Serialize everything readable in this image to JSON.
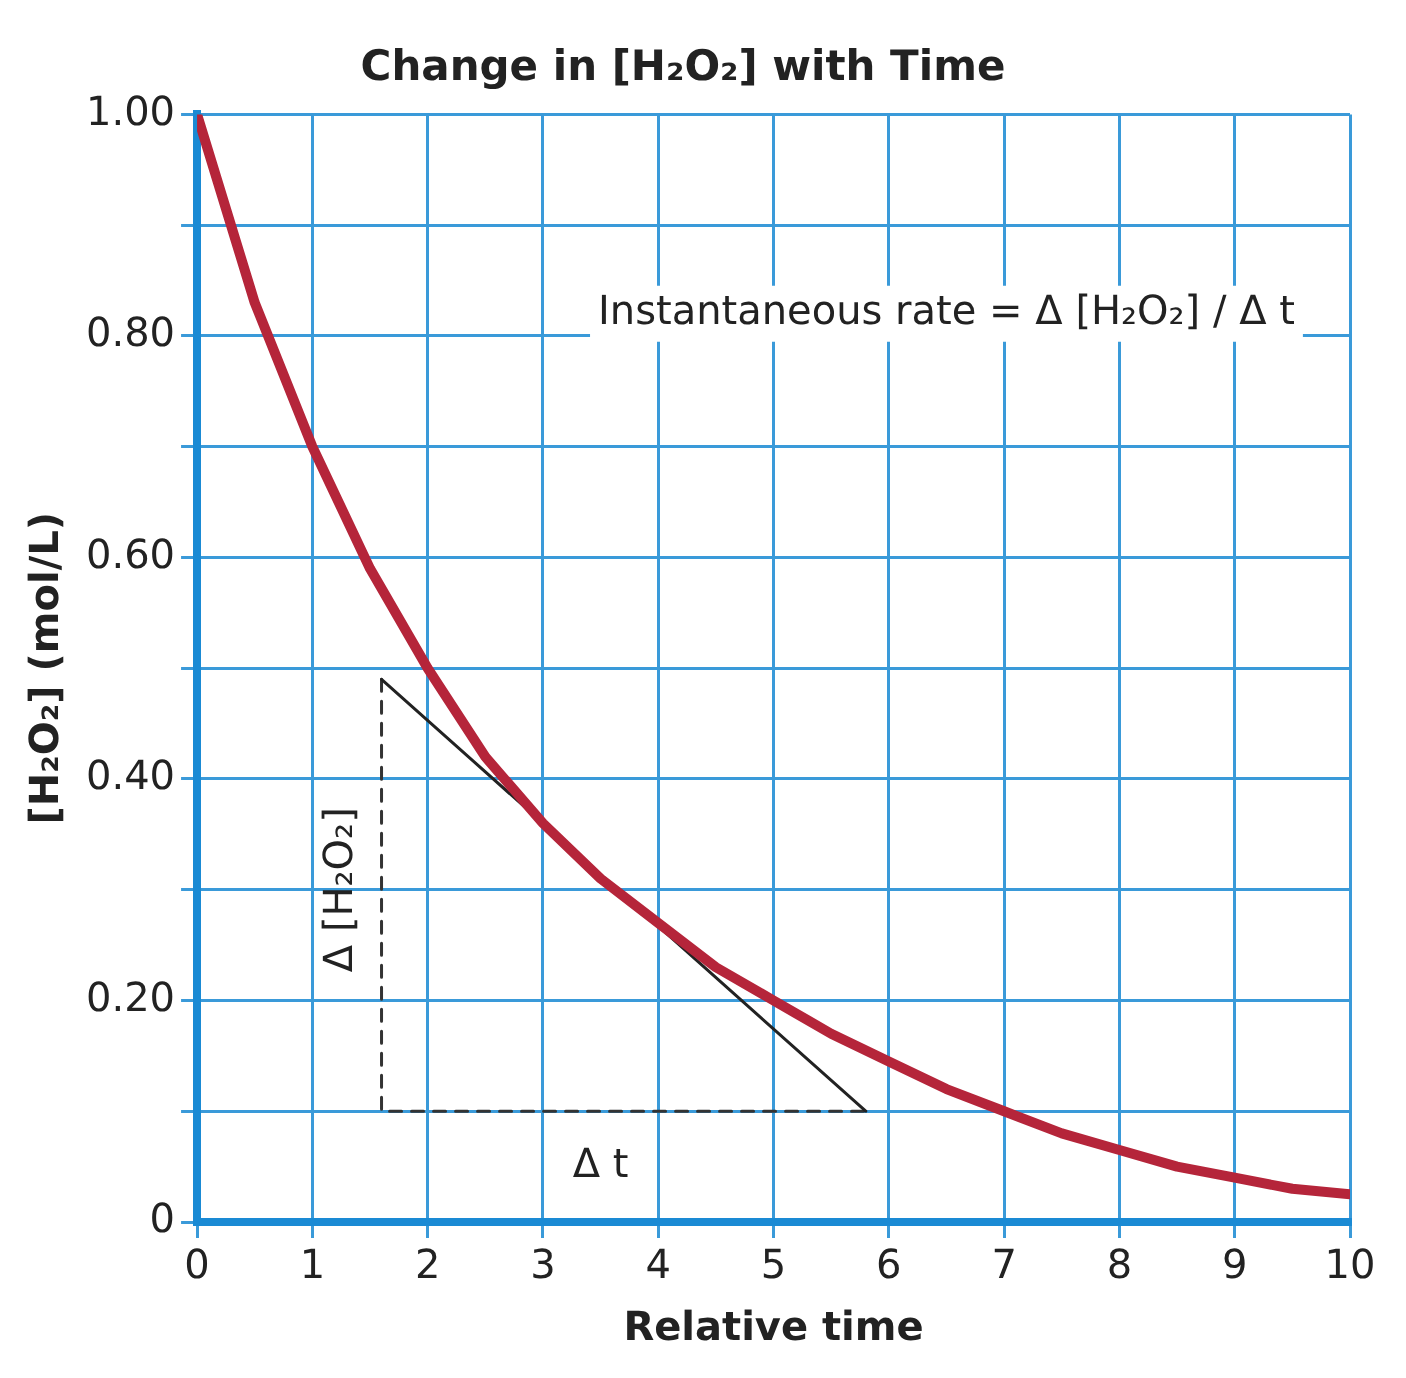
{
  "chart_data": {
    "type": "line",
    "title": "Change in [H₂O₂] with Time",
    "xlabel": "Relative time",
    "ylabel": "[H₂O₂] (mol/L)",
    "annotations": [
      "Instantaneous rate = Δ [H₂O₂] / Δ t",
      "Δ t",
      "Δ [H₂O₂]"
    ],
    "series": [
      {
        "color": "#b5253a",
        "x": [
          0,
          0.5,
          1,
          1.5,
          2,
          2.5,
          3,
          3.5,
          4,
          4.5,
          5,
          5.5,
          6,
          6.5,
          7,
          7.5,
          8,
          8.5,
          9,
          9.5,
          10
        ],
        "values": [
          1.0,
          0.83,
          0.7,
          0.59,
          0.5,
          0.42,
          0.36,
          0.31,
          0.27,
          0.23,
          0.2,
          0.17,
          0.145,
          0.12,
          0.1,
          0.08,
          0.065,
          0.05,
          0.04,
          0.03,
          0.025
        ]
      },
      {
        "color": "#222222",
        "x": [
          1.6,
          5.8
        ],
        "values": [
          0.49,
          0.1
        ]
      },
      {
        "color": "#333333",
        "x": [
          1.6,
          1.6,
          5.8
        ],
        "values": [
          0.49,
          0.1,
          0.1
        ],
        "line_style": "dashed"
      }
    ],
    "xlim": [
      0,
      10
    ],
    "xticks": [
      0,
      1,
      2,
      3,
      4,
      5,
      6,
      7,
      8,
      9,
      10
    ],
    "ylim": [
      0,
      1
    ],
    "yticks": [
      0,
      {
        "value": 0.1,
        "label": null
      },
      {
        "value": 0.2,
        "label": "0.20"
      },
      {
        "value": 0.3,
        "label": null
      },
      {
        "value": 0.4,
        "label": "0.40"
      },
      {
        "value": 0.5,
        "label": null
      },
      {
        "value": 0.6,
        "label": "0.60"
      },
      {
        "value": 0.7,
        "label": null
      },
      {
        "value": 0.8,
        "label": "0.80"
      },
      {
        "value": 0.9,
        "label": null
      },
      {
        "value": 1,
        "label": "1.00"
      }
    ],
    "grid": true,
    "legend": false,
    "marker": "none",
    "line_style": "solid"
  }
}
